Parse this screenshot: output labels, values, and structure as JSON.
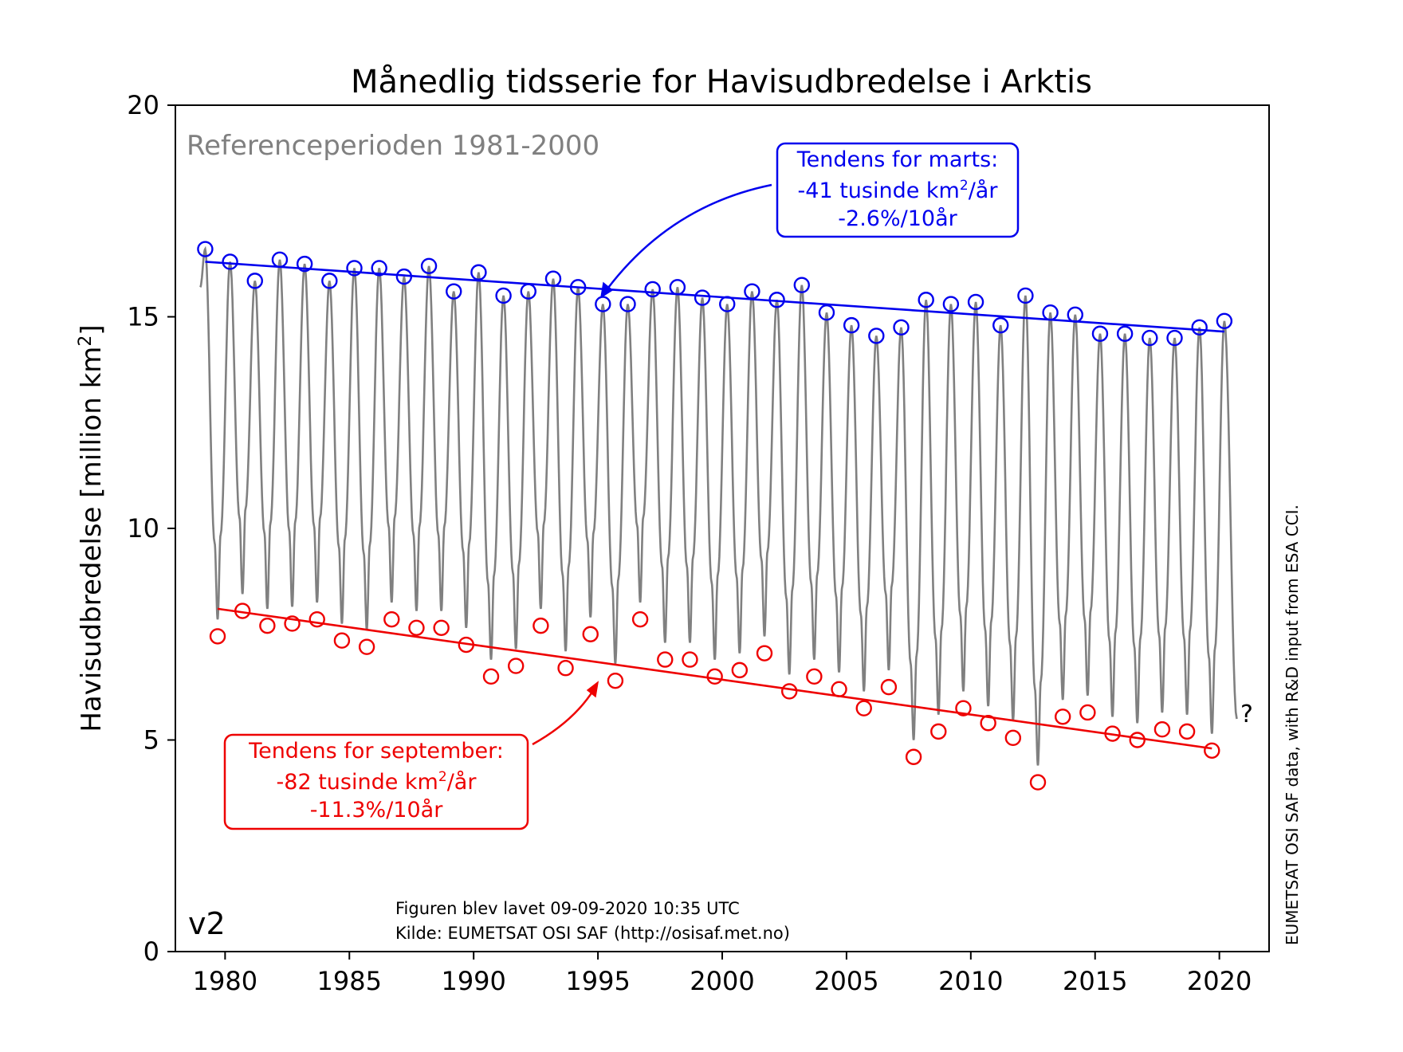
{
  "chart_data": {
    "type": "line",
    "title": "Månedlig tidsserie for Havisudbredelse i Arktis",
    "ylabel": "Havisudbredelse [million km",
    "ylabel_sup": "2",
    "ylabel_end": "]",
    "xlim": [
      1978.0,
      2022.0
    ],
    "ylim": [
      0,
      20
    ],
    "x_ticks": [
      1980,
      1985,
      1990,
      1995,
      2000,
      2005,
      2010,
      2015,
      2020
    ],
    "y_ticks": [
      0,
      5,
      10,
      15,
      20
    ],
    "grid": false,
    "reference_label": "Referenceperioden 1981-2000",
    "version_label": "v2",
    "footer_line1": "Figuren blev lavet 09-09-2020 10:35 UTC",
    "footer_line2": "Kilde: EUMETSAT OSI SAF (http://osisaf.met.no)",
    "side_credit": "EUMETSAT OSI SAF data, with R&D input from ESA CCI.",
    "unknown_marker": "?",
    "colors": {
      "monthly": "#808080",
      "march": "#0000ee",
      "september": "#ee0000"
    },
    "march_max": {
      "years": [
        1979,
        1980,
        1981,
        1982,
        1983,
        1984,
        1985,
        1986,
        1987,
        1988,
        1989,
        1990,
        1991,
        1992,
        1993,
        1994,
        1995,
        1996,
        1997,
        1998,
        1999,
        2000,
        2001,
        2002,
        2003,
        2004,
        2005,
        2006,
        2007,
        2008,
        2009,
        2010,
        2011,
        2012,
        2013,
        2014,
        2015,
        2016,
        2017,
        2018,
        2019,
        2020
      ],
      "values": [
        16.6,
        16.3,
        15.85,
        16.35,
        16.25,
        15.85,
        16.15,
        16.15,
        15.95,
        16.2,
        15.6,
        16.05,
        15.5,
        15.6,
        15.9,
        15.7,
        15.3,
        15.3,
        15.65,
        15.7,
        15.45,
        15.3,
        15.6,
        15.4,
        15.75,
        15.1,
        14.8,
        14.55,
        14.75,
        15.4,
        15.3,
        15.35,
        14.8,
        15.5,
        15.1,
        15.05,
        14.6,
        14.6,
        14.5,
        14.5,
        14.75,
        14.9
      ]
    },
    "september_min": {
      "years": [
        1979,
        1980,
        1981,
        1982,
        1983,
        1984,
        1985,
        1986,
        1987,
        1988,
        1989,
        1990,
        1991,
        1992,
        1993,
        1994,
        1995,
        1996,
        1997,
        1998,
        1999,
        2000,
        2001,
        2002,
        2003,
        2004,
        2005,
        2006,
        2007,
        2008,
        2009,
        2010,
        2011,
        2012,
        2013,
        2014,
        2015,
        2016,
        2017,
        2018,
        2019
      ],
      "values": [
        7.45,
        8.05,
        7.7,
        7.75,
        7.85,
        7.35,
        7.2,
        7.85,
        7.65,
        7.65,
        7.25,
        6.5,
        6.75,
        7.7,
        6.7,
        7.5,
        6.4,
        7.85,
        6.9,
        6.9,
        6.5,
        6.65,
        7.05,
        6.15,
        6.5,
        6.2,
        5.75,
        6.25,
        4.6,
        5.2,
        5.75,
        5.4,
        5.05,
        4.0,
        5.55,
        5.65,
        5.15,
        5.0,
        5.25,
        5.2,
        4.75
      ]
    },
    "march_trend": {
      "x": [
        1979.2,
        2020.2
      ],
      "y": [
        16.3,
        14.65
      ],
      "label_line1": "Tendens for marts:",
      "label_line2_pre": "-41 tusinde km",
      "label_line2_sup": "2",
      "label_line2_post": "/år",
      "label_line3": "-2.6%/10år"
    },
    "september_trend": {
      "x": [
        1979.7,
        2019.7
      ],
      "y": [
        8.1,
        4.8
      ],
      "label_line1": "Tendens for september:",
      "label_line2_pre": "-82 tusinde km",
      "label_line2_sup": "2",
      "label_line2_post": "/år",
      "label_line3": "-11.3%/10år"
    },
    "monthly_series": {
      "start_year": 1979,
      "end_year": 2020,
      "last_march_to_sept_value": 5.5
    }
  }
}
